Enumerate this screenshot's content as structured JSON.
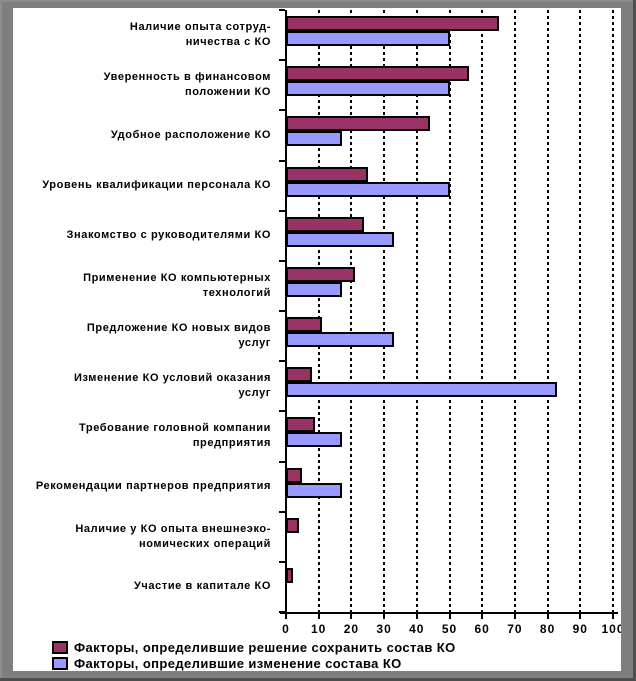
{
  "chart_data": {
    "type": "bar",
    "orientation": "horizontal",
    "title": "",
    "xlabel": "",
    "ylabel": "",
    "xlim": [
      0,
      100
    ],
    "x_ticks": [
      0,
      10,
      20,
      30,
      40,
      50,
      60,
      70,
      80,
      90,
      100
    ],
    "grid": "vertical-dashed",
    "legend_position": "bottom-left",
    "categories": [
      "Наличие опыта сотруд-\nничества с КО",
      "Уверенность в финансовом\nположении КО",
      "Удобное расположение КО",
      "Уровень квалификации персонала КО",
      "Знакомство с руководителями КО",
      "Применение КО компьютерных\nтехнологий",
      "Предложение КО новых видов\nуслуг",
      "Изменение КО условий оказания\nуслуг",
      "Требование головной компании\nпредприятия",
      "Рекомендации партнеров предприятия",
      "Наличие у  КО опыта внешнеэко-\nномических операций",
      "Участие в капитале КО"
    ],
    "series": [
      {
        "name": "Факторы, определившие решение сохранить состав КО",
        "color": "#993366",
        "values": [
          65,
          56,
          44,
          25,
          24,
          21,
          11,
          8,
          9,
          5,
          4,
          2
        ]
      },
      {
        "name": "Факторы, определившие изменение состава КО",
        "color": "#9999FF",
        "values": [
          50,
          50,
          17,
          50,
          33,
          17,
          33,
          83,
          17,
          17,
          0,
          0
        ]
      }
    ]
  }
}
